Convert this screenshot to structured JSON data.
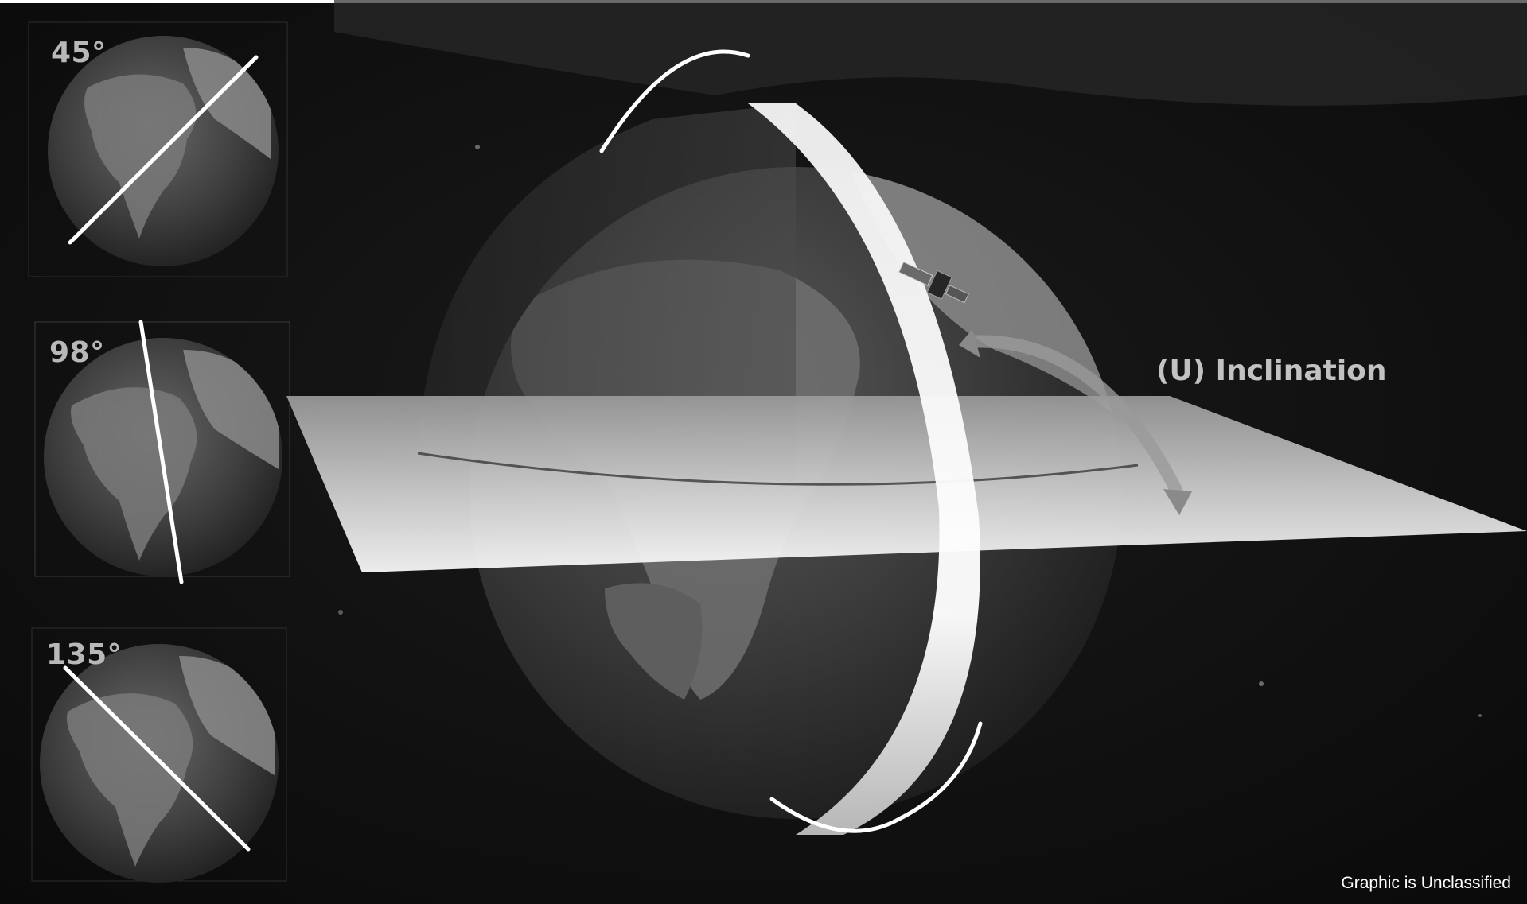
{
  "insets": [
    {
      "inclination_label": "45°"
    },
    {
      "inclination_label": "98°"
    },
    {
      "inclination_label": "135°"
    }
  ],
  "main": {
    "label": "(U) Inclination"
  },
  "footer": {
    "classification": "Graphic is Unclassified"
  },
  "colors": {
    "space": "#0e0e0e",
    "earth_dark": "#2a2a2a",
    "earth_land": "#6e6e6e",
    "orbit_line": "#ffffff",
    "label_gray": "#b8b8b8"
  }
}
